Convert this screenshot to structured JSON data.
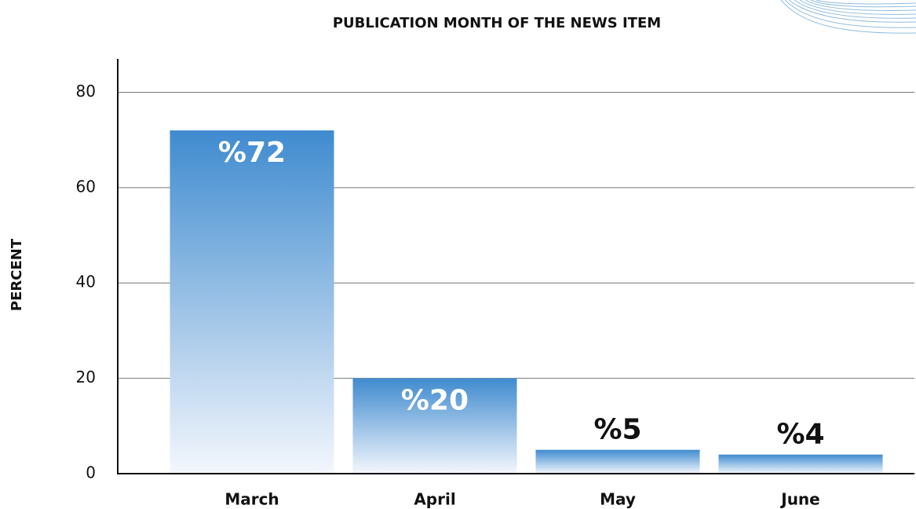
{
  "chart_data": {
    "type": "bar",
    "title": "PUBLICATION MONTH OF THE NEWS ITEM",
    "y_label": "PERCENT",
    "categories": [
      "March",
      "April",
      "May",
      "June"
    ],
    "values": [
      72,
      20,
      5,
      4
    ],
    "value_labels": [
      "%72",
      "%20",
      "%5",
      "%4"
    ],
    "color": "#3f8bcf",
    "ylim": [
      0,
      87
    ],
    "yticks": [
      0,
      20,
      40,
      60,
      80
    ],
    "grid": true
  }
}
